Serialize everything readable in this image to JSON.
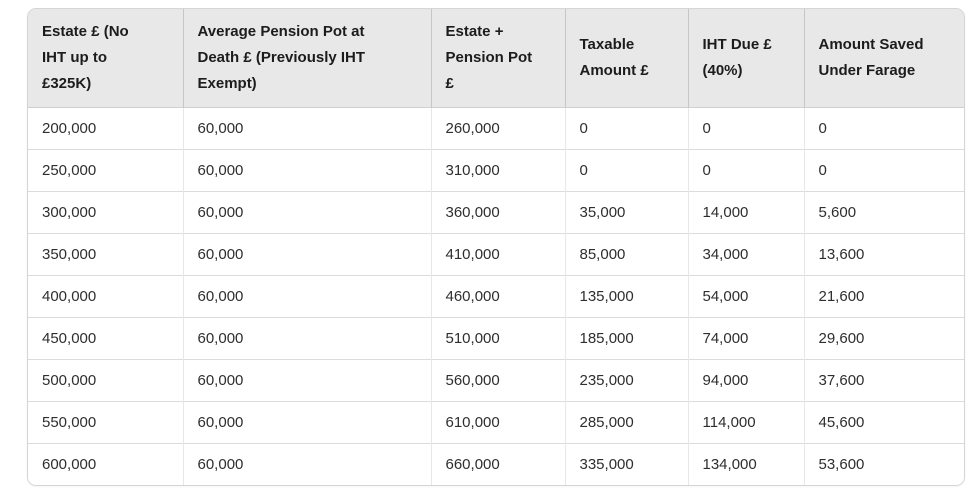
{
  "chart_data": {
    "type": "table",
    "title": "",
    "columns": [
      "Estate £ (No IHT up to £325K)",
      "Average Pension Pot at Death £ (Previously IHT Exempt)",
      "Estate + Pension Pot £",
      "Taxable Amount £",
      "IHT Due £ (40%)",
      "Amount Saved Under Farage"
    ],
    "rows": [
      [
        "200,000",
        "60,000",
        "260,000",
        "0",
        "0",
        "0"
      ],
      [
        "250,000",
        "60,000",
        "310,000",
        "0",
        "0",
        "0"
      ],
      [
        "300,000",
        "60,000",
        "360,000",
        "35,000",
        "14,000",
        "5,600"
      ],
      [
        "350,000",
        "60,000",
        "410,000",
        "85,000",
        "34,000",
        "13,600"
      ],
      [
        "400,000",
        "60,000",
        "460,000",
        "135,000",
        "54,000",
        "21,600"
      ],
      [
        "450,000",
        "60,000",
        "510,000",
        "185,000",
        "74,000",
        "29,600"
      ],
      [
        "500,000",
        "60,000",
        "560,000",
        "235,000",
        "94,000",
        "37,600"
      ],
      [
        "550,000",
        "60,000",
        "610,000",
        "285,000",
        "114,000",
        "45,600"
      ],
      [
        "600,000",
        "60,000",
        "660,000",
        "335,000",
        "134,000",
        "53,600"
      ]
    ]
  },
  "table": {
    "header_cells": [
      "Estate £ (No\nIHT up to\n£325K)",
      "Average Pension Pot at\nDeath £ (Previously IHT\nExempt)",
      "Estate +\nPension Pot\n£",
      "Taxable\nAmount £",
      "IHT Due £\n(40%)",
      "Amount Saved\nUnder Farage"
    ]
  },
  "colors": {
    "page_background": "#ffffff",
    "header_background": "#e8e8e8",
    "header_text": "#1c1c1c",
    "body_text": "#2e2e2e",
    "row_divider": "#dbdbdb",
    "column_divider_body": "#e7e7e7",
    "column_divider_header": "#c6c6c6",
    "outer_border": "#d5d5d5"
  }
}
